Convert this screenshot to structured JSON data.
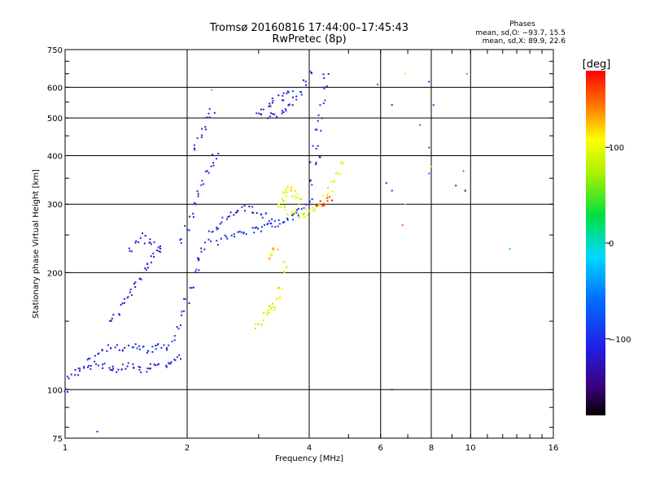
{
  "chart_data": {
    "type": "scatter",
    "title": "Tromsø 20160816 17:44:00–17:45:43",
    "subtitle": "RwPretec (8p)",
    "xlabel": "Frequency [MHz]",
    "ylabel": "Stationary phase Virtual Height [km]",
    "x_scale": "log",
    "y_scale": "log",
    "xlim": [
      1,
      16
    ],
    "ylim": [
      75,
      750
    ],
    "x_ticks": [
      "1",
      "2",
      "4",
      "6",
      "8",
      "10",
      "16"
    ],
    "x_tick_values": [
      1,
      2,
      4,
      6,
      8,
      10,
      16
    ],
    "y_ticks": [
      "75",
      "100",
      "200",
      "300",
      "400",
      "500",
      "600",
      "750"
    ],
    "y_tick_values": [
      75,
      100,
      200,
      300,
      400,
      500,
      600,
      750
    ],
    "grid": true,
    "phase_info": {
      "heading": "Phases",
      "line_o": "mean, sd,O: −93.7, 15.5",
      "line_x": "mean, sd,X:  89.9, 22.6"
    },
    "colorbar": {
      "label": "[deg]",
      "tick_labels": [
        "100",
        "0",
        "−100"
      ],
      "tick_values": [
        100,
        0,
        -100
      ],
      "range": [
        -180,
        180
      ]
    },
    "traces": [
      {
        "x": [
          1.0,
          1.03,
          1.06,
          1.09,
          1.12,
          1.16,
          1.2,
          1.24,
          1.28,
          1.32,
          1.36,
          1.4,
          1.45,
          1.5,
          1.55,
          1.6,
          1.65,
          1.7,
          1.75,
          1.8,
          1.85,
          1.9
        ],
        "y": [
          99,
          108,
          111,
          112,
          113,
          114,
          116,
          115,
          114,
          114,
          113,
          114,
          115,
          113,
          112,
          113,
          115,
          116,
          116,
          118,
          119,
          121
        ],
        "phase": -110
      },
      {
        "x": [
          1.15,
          1.2,
          1.25,
          1.3,
          1.35,
          1.4,
          1.45,
          1.5,
          1.55,
          1.6,
          1.65,
          1.7,
          1.75,
          1.8
        ],
        "y": [
          118,
          123,
          126,
          128,
          128,
          127,
          128,
          130,
          128,
          126,
          127,
          129,
          128,
          128
        ],
        "phase": -105
      },
      {
        "x": [
          1.3,
          1.34,
          1.38,
          1.42,
          1.46,
          1.5,
          1.54,
          1.58,
          1.62,
          1.66,
          1.7
        ],
        "y": [
          150,
          158,
          164,
          170,
          178,
          186,
          195,
          203,
          210,
          220,
          230
        ],
        "phase": -115
      },
      {
        "x": [
          1.45,
          1.5,
          1.55,
          1.6,
          1.65,
          1.7
        ],
        "y": [
          230,
          240,
          250,
          240,
          235,
          228
        ],
        "phase": -112
      },
      {
        "x": [
          1.85,
          1.9,
          1.95,
          2.0,
          2.05,
          2.1,
          2.15,
          2.2,
          2.25,
          2.3,
          2.35,
          2.4
        ],
        "y": [
          135,
          145,
          158,
          170,
          185,
          200,
          215,
          228,
          240,
          252,
          262,
          272
        ],
        "phase": -108
      },
      {
        "x": [
          1.95,
          2.0,
          2.05,
          2.1,
          2.15,
          2.2,
          2.25,
          2.3,
          2.35
        ],
        "y": [
          240,
          260,
          280,
          300,
          320,
          340,
          360,
          380,
          400
        ],
        "phase": -110
      },
      {
        "x": [
          2.1,
          2.15,
          2.2,
          2.25,
          2.3
        ],
        "y": [
          420,
          450,
          475,
          500,
          520
        ],
        "phase": -105
      },
      {
        "x": [
          2.4,
          2.5,
          2.6,
          2.7,
          2.8,
          2.9,
          3.0,
          3.1,
          3.2,
          3.3,
          3.4,
          3.5,
          3.6,
          3.7,
          3.8,
          3.9,
          4.0,
          4.1,
          4.2
        ],
        "y": [
          240,
          245,
          248,
          252,
          256,
          258,
          260,
          262,
          264,
          267,
          270,
          274,
          278,
          282,
          288,
          296,
          310,
          340,
          400
        ],
        "phase": -100
      },
      {
        "x": [
          2.5,
          2.6,
          2.7,
          2.8,
          2.9,
          3.0,
          3.1,
          3.2
        ],
        "y": [
          275,
          285,
          290,
          292,
          290,
          285,
          280,
          272
        ],
        "phase": -115
      },
      {
        "x": [
          4.1,
          4.15,
          4.2,
          4.25,
          4.3,
          4.35,
          4.4
        ],
        "y": [
          380,
          420,
          460,
          500,
          550,
          600,
          640
        ],
        "phase": -105
      },
      {
        "x": [
          3.2,
          3.3,
          3.4,
          3.5,
          3.6,
          3.7,
          3.8,
          3.9,
          4.0
        ],
        "y": [
          505,
          512,
          520,
          530,
          545,
          560,
          585,
          615,
          650
        ],
        "phase": -112
      },
      {
        "x": [
          3.0,
          3.1,
          3.2,
          3.3,
          3.4,
          3.5,
          3.6
        ],
        "y": [
          510,
          520,
          540,
          555,
          565,
          570,
          575
        ],
        "phase": -120
      },
      {
        "x": [
          3.4,
          3.5,
          3.6,
          3.7,
          3.8,
          3.9,
          4.0,
          4.1,
          4.2,
          4.3,
          4.4,
          4.5,
          4.6,
          4.7,
          4.8
        ],
        "y": [
          300,
          292,
          286,
          282,
          280,
          282,
          286,
          290,
          296,
          304,
          314,
          326,
          340,
          358,
          380
        ],
        "phase": 90
      },
      {
        "x": [
          3.4,
          3.45,
          3.5,
          3.55,
          3.6,
          3.65,
          3.7,
          3.75,
          3.8
        ],
        "y": [
          300,
          310,
          320,
          328,
          334,
          326,
          318,
          312,
          306
        ],
        "phase": 100
      },
      {
        "x": [
          3.0,
          3.05,
          3.1,
          3.15,
          3.2,
          3.25
        ],
        "y": [
          145,
          150,
          155,
          160,
          163,
          162
        ],
        "phase": 85
      },
      {
        "x": [
          3.3,
          3.35,
          3.4,
          3.45,
          3.5
        ],
        "y": [
          165,
          172,
          185,
          198,
          210
        ],
        "phase": 110
      },
      {
        "x": [
          3.2,
          3.25,
          3.3
        ],
        "y": [
          220,
          225,
          230
        ],
        "phase": 120
      },
      {
        "x": [
          4.2,
          4.3,
          4.4,
          4.5
        ],
        "y": [
          300,
          302,
          305,
          310
        ],
        "phase": 170
      }
    ],
    "isolated_points": [
      {
        "x": 1.2,
        "y": 78,
        "phase": -95
      },
      {
        "x": 2.3,
        "y": 590,
        "phase": 140
      },
      {
        "x": 5.9,
        "y": 610,
        "phase": -60
      },
      {
        "x": 6.4,
        "y": 540,
        "phase": -115
      },
      {
        "x": 6.9,
        "y": 650,
        "phase": 90
      },
      {
        "x": 7.9,
        "y": 620,
        "phase": -100
      },
      {
        "x": 8.1,
        "y": 540,
        "phase": -80
      },
      {
        "x": 9.8,
        "y": 650,
        "phase": 20
      },
      {
        "x": 7.5,
        "y": 480,
        "phase": -50
      },
      {
        "x": 7.9,
        "y": 420,
        "phase": -90
      },
      {
        "x": 8.0,
        "y": 375,
        "phase": 120
      },
      {
        "x": 7.9,
        "y": 360,
        "phase": -60
      },
      {
        "x": 9.6,
        "y": 365,
        "phase": 160
      },
      {
        "x": 9.2,
        "y": 335,
        "phase": -110
      },
      {
        "x": 9.7,
        "y": 325,
        "phase": -150
      },
      {
        "x": 6.2,
        "y": 340,
        "phase": -100
      },
      {
        "x": 6.4,
        "y": 325,
        "phase": -105
      },
      {
        "x": 6.9,
        "y": 300,
        "phase": 80
      },
      {
        "x": 6.8,
        "y": 265,
        "phase": 150
      },
      {
        "x": 12.5,
        "y": 230,
        "phase": 20
      },
      {
        "x": 6.4,
        "y": 100,
        "phase": -100
      }
    ]
  }
}
